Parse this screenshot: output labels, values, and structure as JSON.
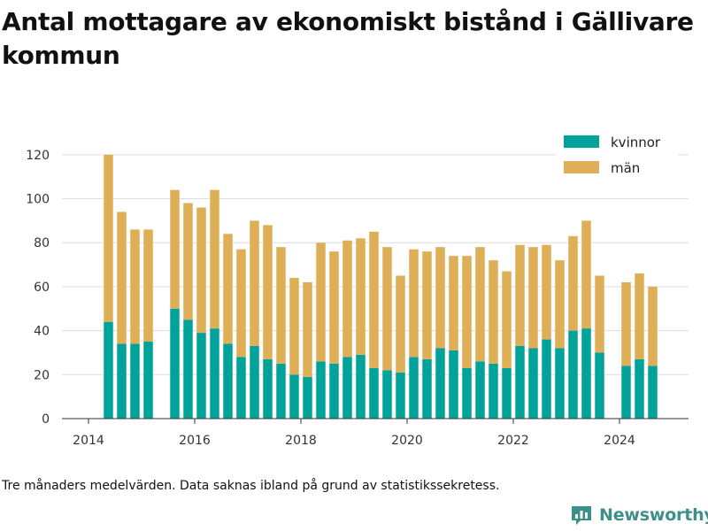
{
  "title": "Antal mottagare av ekonomiskt bistånd i Gällivare kommun",
  "caption": "Tre månaders medelvärden. Data saknas ibland på grund av statistikssekretess.",
  "brand": {
    "name": "Newsworthy",
    "icon": "newsworthy-logo-icon",
    "color": "#3d8f8a"
  },
  "chart_data": {
    "type": "bar",
    "stacked": true,
    "x_unit": "quarter (decimal year)",
    "x": [
      2014.375,
      2014.625,
      2014.875,
      2015.125,
      2015.625,
      2015.875,
      2016.125,
      2016.375,
      2016.625,
      2016.875,
      2017.125,
      2017.375,
      2017.625,
      2017.875,
      2018.125,
      2018.375,
      2018.625,
      2018.875,
      2019.125,
      2019.375,
      2019.625,
      2019.875,
      2020.125,
      2020.375,
      2020.625,
      2020.875,
      2021.125,
      2021.375,
      2021.625,
      2021.875,
      2022.125,
      2022.375,
      2022.625,
      2022.875,
      2023.125,
      2023.375,
      2023.625,
      2024.125,
      2024.375,
      2024.625
    ],
    "series": [
      {
        "name": "kvinnor",
        "color": "#00a39a",
        "values": [
          44,
          34,
          34,
          35,
          50,
          45,
          39,
          41,
          34,
          28,
          33,
          27,
          25,
          20,
          19,
          26,
          25,
          28,
          29,
          23,
          22,
          21,
          28,
          27,
          32,
          31,
          23,
          26,
          25,
          23,
          33,
          32,
          36,
          32,
          40,
          41,
          30,
          24,
          27,
          24
        ]
      },
      {
        "name": "män",
        "color": "#deaf57",
        "values": [
          76,
          60,
          52,
          51,
          54,
          53,
          57,
          63,
          50,
          49,
          57,
          61,
          53,
          44,
          43,
          54,
          51,
          53,
          53,
          62,
          56,
          44,
          49,
          49,
          46,
          43,
          51,
          52,
          47,
          44,
          46,
          46,
          43,
          40,
          43,
          49,
          35,
          38,
          39,
          36
        ]
      }
    ],
    "x_ticks": [
      "2014",
      "2016",
      "2018",
      "2020",
      "2022",
      "2024"
    ],
    "y_ticks": [
      "0",
      "20",
      "40",
      "60",
      "80",
      "100",
      "120"
    ],
    "xlim": [
      2013.5,
      2025.3
    ],
    "ylim": [
      0,
      130
    ],
    "grid": true,
    "legend": "top-right"
  }
}
